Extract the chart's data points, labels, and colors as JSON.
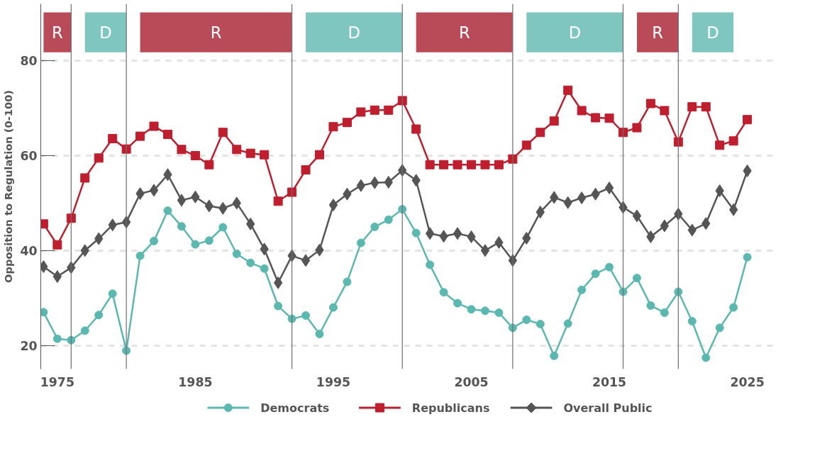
{
  "chart_data": {
    "type": "line",
    "ylabel": "Opposition to Regulation (0-100)",
    "x": [
      1974,
      1975,
      1976,
      1977,
      1978,
      1979,
      1980,
      1981,
      1982,
      1983,
      1984,
      1985,
      1986,
      1987,
      1988,
      1989,
      1990,
      1991,
      1992,
      1993,
      1994,
      1995,
      1996,
      1997,
      1998,
      1999,
      2000,
      2001,
      2002,
      2003,
      2004,
      2005,
      2006,
      2007,
      2008,
      2009,
      2010,
      2011,
      2012,
      2013,
      2014,
      2015,
      2016,
      2017,
      2018,
      2019,
      2020,
      2021,
      2022,
      2023,
      2024,
      2025
    ],
    "series": [
      {
        "name": "Democrats",
        "color": "#5bb8b0",
        "marker": "circle",
        "values": [
          27.0,
          21.4,
          21.1,
          23.1,
          26.4,
          30.9,
          18.9,
          38.9,
          42.0,
          48.4,
          45.1,
          41.3,
          42.1,
          44.9,
          39.3,
          37.4,
          36.2,
          28.3,
          25.6,
          26.3,
          22.4,
          28.0,
          33.4,
          41.6,
          45.0,
          46.5,
          48.7,
          43.7,
          37.0,
          31.2,
          28.9,
          27.6,
          27.3,
          26.9,
          23.7,
          25.4,
          24.5,
          17.8,
          24.6,
          31.7,
          35.1,
          36.5,
          31.3,
          34.2,
          28.4,
          26.9,
          31.3,
          25.1,
          17.4,
          23.7,
          28.0,
          38.6
        ]
      },
      {
        "name": "Republicans",
        "color": "#be1e2d",
        "marker": "square",
        "values": [
          45.6,
          41.2,
          46.8,
          55.3,
          59.5,
          63.6,
          61.4,
          64.1,
          66.2,
          64.5,
          61.3,
          60.0,
          58.1,
          64.9,
          61.3,
          60.5,
          60.2,
          50.4,
          52.3,
          57.0,
          60.2,
          66.1,
          67.0,
          69.2,
          69.6,
          69.6,
          71.6,
          65.6,
          58.1,
          58.1,
          58.1,
          58.1,
          58.1,
          58.1,
          59.3,
          62.2,
          64.9,
          67.3,
          73.8,
          69.5,
          68.0,
          67.9,
          64.9,
          65.9,
          71.0,
          69.5,
          62.9,
          70.3,
          70.3,
          62.2,
          63.1,
          67.6
        ]
      },
      {
        "name": "Overall Public",
        "color": "#555555",
        "marker": "diamond",
        "values": [
          36.6,
          34.5,
          36.4,
          40.0,
          42.5,
          45.4,
          46.0,
          52.0,
          52.7,
          56.0,
          50.6,
          51.3,
          49.4,
          48.9,
          50.0,
          45.6,
          40.3,
          33.2,
          38.9,
          37.9,
          40.1,
          49.6,
          51.9,
          53.7,
          54.3,
          54.4,
          56.9,
          54.8,
          43.6,
          43.0,
          43.6,
          42.9,
          40.0,
          41.7,
          37.9,
          42.6,
          48.1,
          51.2,
          50.1,
          51.1,
          51.9,
          53.2,
          49.1,
          47.3,
          42.9,
          45.2,
          47.7,
          44.3,
          45.7,
          52.6,
          48.6,
          56.8
        ]
      }
    ],
    "xlim": [
      1973.8,
      2027
    ],
    "xticks": [
      1975,
      1985,
      1995,
      2005,
      2015,
      2025
    ],
    "ylim": [
      15,
      92
    ],
    "yticks": [
      20,
      40,
      60,
      80
    ],
    "ref_lines": [
      {
        "axis": "x",
        "value": 1976,
        "color": "#6e6e6e"
      },
      {
        "axis": "x",
        "value": 1980,
        "color": "#6e6e6e"
      },
      {
        "axis": "x",
        "value": 1992,
        "color": "#6e6e6e"
      },
      {
        "axis": "x",
        "value": 2000,
        "color": "#6e6e6e"
      },
      {
        "axis": "x",
        "value": 2008,
        "color": "#6e6e6e"
      },
      {
        "axis": "x",
        "value": 2016,
        "color": "#6e6e6e"
      },
      {
        "axis": "x",
        "value": 2020,
        "color": "#6e6e6e"
      }
    ],
    "bands": [
      {
        "axis": "x",
        "from": 1974,
        "to": 1976,
        "label": "R",
        "color": "#b94a57"
      },
      {
        "axis": "x",
        "from": 1977,
        "to": 1980,
        "label": "D",
        "color": "#7fc6c0"
      },
      {
        "axis": "x",
        "from": 1981,
        "to": 1992,
        "label": "R",
        "color": "#b94a57"
      },
      {
        "axis": "x",
        "from": 1993,
        "to": 2000,
        "label": "D",
        "color": "#7fc6c0"
      },
      {
        "axis": "x",
        "from": 2001,
        "to": 2008,
        "label": "R",
        "color": "#b94a57"
      },
      {
        "axis": "x",
        "from": 2009,
        "to": 2016,
        "label": "D",
        "color": "#7fc6c0"
      },
      {
        "axis": "x",
        "from": 2017,
        "to": 2020,
        "label": "R",
        "color": "#b94a57"
      },
      {
        "axis": "x",
        "from": 2021,
        "to": 2024,
        "label": "D",
        "color": "#7fc6c0"
      }
    ],
    "grid": "y",
    "legend": "bottom",
    "line_style": "solid"
  }
}
